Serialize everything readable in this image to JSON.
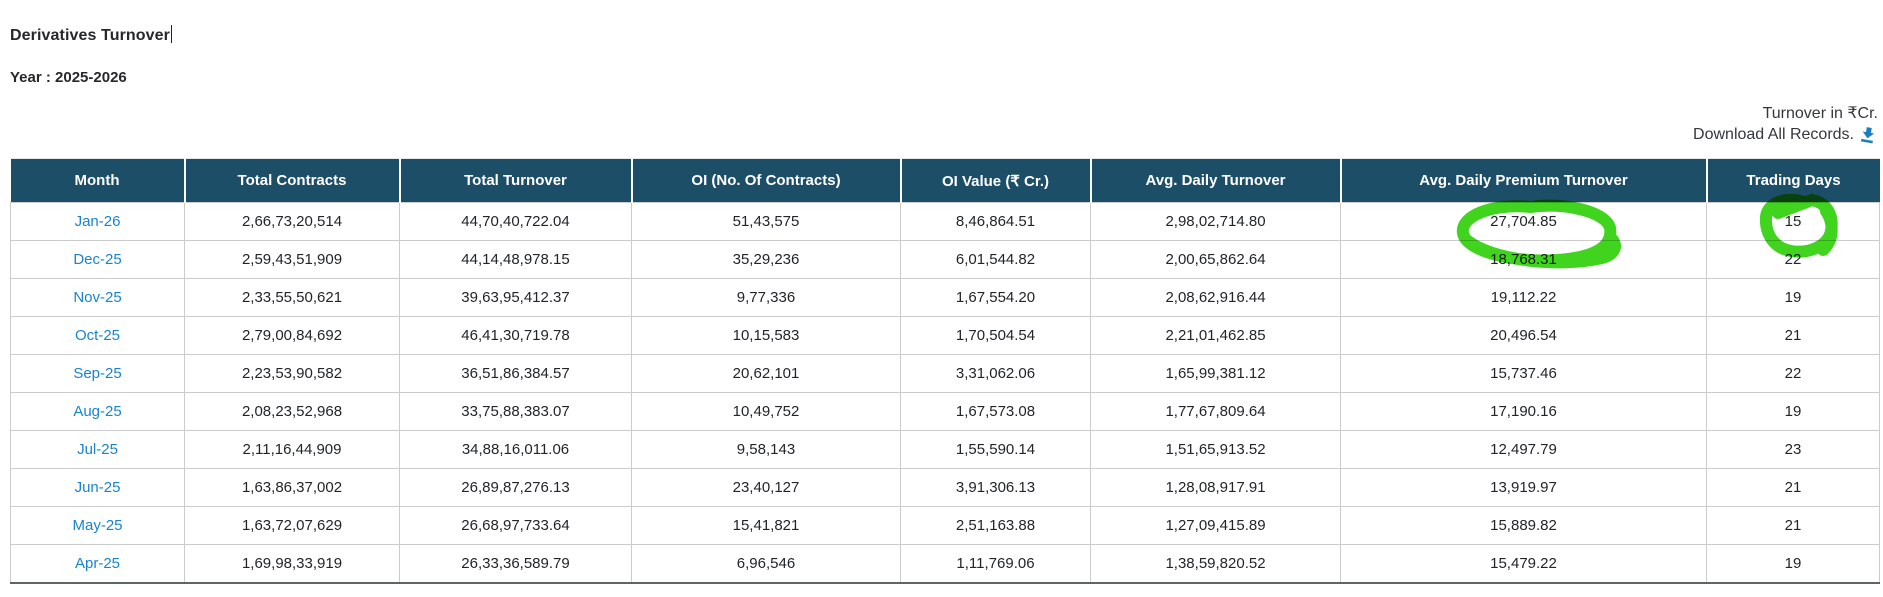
{
  "page": {
    "title": "Derivatives Turnover",
    "year_label": "Year : 2025-2026",
    "turnover_note": "Turnover in ₹Cr.",
    "download_label": "Download All Records.",
    "icons": {
      "download_icon": "download-arrow-into-tray"
    },
    "colors": {
      "header_bg": "#1c4e68",
      "link": "#1884cd",
      "download_icon": "#1a7dc0",
      "annotation": "#40d41f"
    }
  },
  "table": {
    "columns": [
      "Month",
      "Total Contracts",
      "Total Turnover",
      "OI (No. Of Contracts)",
      "OI Value (₹ Cr.)",
      "Avg. Daily Turnover",
      "Avg. Daily Premium Turnover",
      "Trading Days"
    ],
    "rows": [
      {
        "cells": [
          "Jan-26",
          "2,66,73,20,514",
          "44,70,40,722.04",
          "51,43,575",
          "8,46,864.51",
          "2,98,02,714.80",
          "27,704.85",
          "15"
        ]
      },
      {
        "cells": [
          "Dec-25",
          "2,59,43,51,909",
          "44,14,48,978.15",
          "35,29,236",
          "6,01,544.82",
          "2,00,65,862.64",
          "18,768.31",
          "22"
        ]
      },
      {
        "cells": [
          "Nov-25",
          "2,33,55,50,621",
          "39,63,95,412.37",
          "9,77,336",
          "1,67,554.20",
          "2,08,62,916.44",
          "19,112.22",
          "19"
        ]
      },
      {
        "cells": [
          "Oct-25",
          "2,79,00,84,692",
          "46,41,30,719.78",
          "10,15,583",
          "1,70,504.54",
          "2,21,01,462.85",
          "20,496.54",
          "21"
        ]
      },
      {
        "cells": [
          "Sep-25",
          "2,23,53,90,582",
          "36,51,86,384.57",
          "20,62,101",
          "3,31,062.06",
          "1,65,99,381.12",
          "15,737.46",
          "22"
        ]
      },
      {
        "cells": [
          "Aug-25",
          "2,08,23,52,968",
          "33,75,88,383.07",
          "10,49,752",
          "1,67,573.08",
          "1,77,67,809.64",
          "17,190.16",
          "19"
        ]
      },
      {
        "cells": [
          "Jul-25",
          "2,11,16,44,909",
          "34,88,16,011.06",
          "9,58,143",
          "1,55,590.14",
          "1,51,65,913.52",
          "12,497.79",
          "23"
        ]
      },
      {
        "cells": [
          "Jun-25",
          "1,63,86,37,002",
          "26,89,87,276.13",
          "23,40,127",
          "3,91,306.13",
          "1,28,08,917.91",
          "13,919.97",
          "21"
        ]
      },
      {
        "cells": [
          "May-25",
          "1,63,72,07,629",
          "26,68,97,733.64",
          "15,41,821",
          "2,51,163.88",
          "1,27,09,415.89",
          "15,889.82",
          "21"
        ]
      },
      {
        "cells": [
          "Apr-25",
          "1,69,98,33,919",
          "26,33,36,589.79",
          "6,96,546",
          "1,11,769.06",
          "1,38,59,820.52",
          "15,479.22",
          "19"
        ]
      }
    ]
  },
  "annotations": {
    "type": "hand-drawn green marker circles",
    "circled_values": [
      {
        "row": "Jan-26",
        "column": "Avg. Daily Premium Turnover",
        "value": "27,704.85"
      },
      {
        "row": "Jan-26",
        "column": "Trading Days",
        "value": "15"
      }
    ]
  }
}
